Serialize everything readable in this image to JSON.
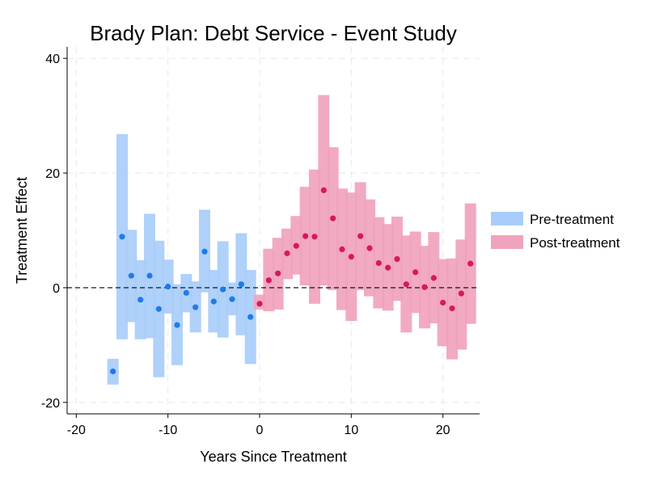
{
  "chart_data": {
    "type": "scatter",
    "title": "Brady Plan: Debt Service - Event Study",
    "xlabel": "Years Since Treatment",
    "ylabel": "Treatment Effect",
    "xlim": [
      -21,
      24
    ],
    "ylim": [
      -22,
      42
    ],
    "xticks": [
      -20,
      -10,
      0,
      10,
      20
    ],
    "xtick_labels": [
      "-20",
      "-10",
      "0",
      "10",
      "20"
    ],
    "yticks": [
      -20,
      0,
      20,
      40
    ],
    "ytick_labels": [
      "-20",
      "0",
      "20",
      "40"
    ],
    "grid": true,
    "reference_line_y": 0,
    "legend_position": "right",
    "series": [
      {
        "name": "Pre-treatment",
        "color": "#1f7ae8",
        "band_color": "#a8cdfa",
        "points": [
          {
            "x": -16,
            "y": -14.6,
            "lo": -16.9,
            "hi": -12.4
          },
          {
            "x": -15,
            "y": 8.9,
            "lo": -9.0,
            "hi": 26.8
          },
          {
            "x": -14,
            "y": 2.1,
            "lo": -6.0,
            "hi": 10.1
          },
          {
            "x": -13,
            "y": -2.1,
            "lo": -9.0,
            "hi": 4.8
          },
          {
            "x": -12,
            "y": 2.1,
            "lo": -8.8,
            "hi": 12.9
          },
          {
            "x": -11,
            "y": -3.7,
            "lo": -15.6,
            "hi": 8.2
          },
          {
            "x": -10,
            "y": 0.2,
            "lo": -4.5,
            "hi": 4.9
          },
          {
            "x": -9,
            "y": -6.5,
            "lo": -13.5,
            "hi": 0.6
          },
          {
            "x": -8,
            "y": -0.9,
            "lo": -4.3,
            "hi": 2.4
          },
          {
            "x": -7,
            "y": -3.4,
            "lo": -7.8,
            "hi": 1.1
          },
          {
            "x": -6,
            "y": 6.3,
            "lo": -0.8,
            "hi": 13.6
          },
          {
            "x": -5,
            "y": -2.4,
            "lo": -7.8,
            "hi": 3.1
          },
          {
            "x": -4,
            "y": -0.3,
            "lo": -8.7,
            "hi": 8.1
          },
          {
            "x": -3,
            "y": -2.0,
            "lo": -4.8,
            "hi": 0.9
          },
          {
            "x": -2,
            "y": 0.6,
            "lo": -8.3,
            "hi": 9.5
          },
          {
            "x": -1,
            "y": -5.1,
            "lo": -13.3,
            "hi": 3.1
          }
        ]
      },
      {
        "name": "Post-treatment",
        "color": "#d6195c",
        "band_color": "#f0a3bd",
        "points": [
          {
            "x": 0,
            "y": -2.8,
            "lo": -3.8,
            "hi": -1.2
          },
          {
            "x": 1,
            "y": 1.3,
            "lo": -4.1,
            "hi": 6.8
          },
          {
            "x": 2,
            "y": 2.5,
            "lo": -3.8,
            "hi": 8.7
          },
          {
            "x": 3,
            "y": 6.0,
            "lo": 1.5,
            "hi": 10.3
          },
          {
            "x": 4,
            "y": 7.3,
            "lo": 2.3,
            "hi": 12.5
          },
          {
            "x": 5,
            "y": 9.0,
            "lo": 0.4,
            "hi": 17.6
          },
          {
            "x": 6,
            "y": 8.9,
            "lo": -2.8,
            "hi": 20.6
          },
          {
            "x": 7,
            "y": 17.0,
            "lo": 0.4,
            "hi": 33.6
          },
          {
            "x": 8,
            "y": 12.1,
            "lo": -0.4,
            "hi": 24.5
          },
          {
            "x": 9,
            "y": 6.7,
            "lo": -3.9,
            "hi": 17.3
          },
          {
            "x": 10,
            "y": 5.4,
            "lo": -5.8,
            "hi": 16.6
          },
          {
            "x": 11,
            "y": 9.0,
            "lo": -0.4,
            "hi": 18.4
          },
          {
            "x": 12,
            "y": 6.9,
            "lo": -1.5,
            "hi": 15.4
          },
          {
            "x": 13,
            "y": 4.3,
            "lo": -3.6,
            "hi": 12.3
          },
          {
            "x": 14,
            "y": 3.5,
            "lo": -4.0,
            "hi": 11.1
          },
          {
            "x": 15,
            "y": 5.0,
            "lo": -2.3,
            "hi": 12.4
          },
          {
            "x": 16,
            "y": 0.6,
            "lo": -7.8,
            "hi": 9.1
          },
          {
            "x": 17,
            "y": 2.7,
            "lo": -4.4,
            "hi": 9.8
          },
          {
            "x": 18,
            "y": 0.1,
            "lo": -7.1,
            "hi": 7.3
          },
          {
            "x": 19,
            "y": 1.7,
            "lo": -6.2,
            "hi": 9.7
          },
          {
            "x": 20,
            "y": -2.6,
            "lo": -10.2,
            "hi": 5.0
          },
          {
            "x": 21,
            "y": -3.6,
            "lo": -12.5,
            "hi": 5.1
          },
          {
            "x": 22,
            "y": -1.0,
            "lo": -10.8,
            "hi": 8.4
          },
          {
            "x": 23,
            "y": 4.2,
            "lo": -6.3,
            "hi": 14.7
          }
        ]
      }
    ]
  }
}
